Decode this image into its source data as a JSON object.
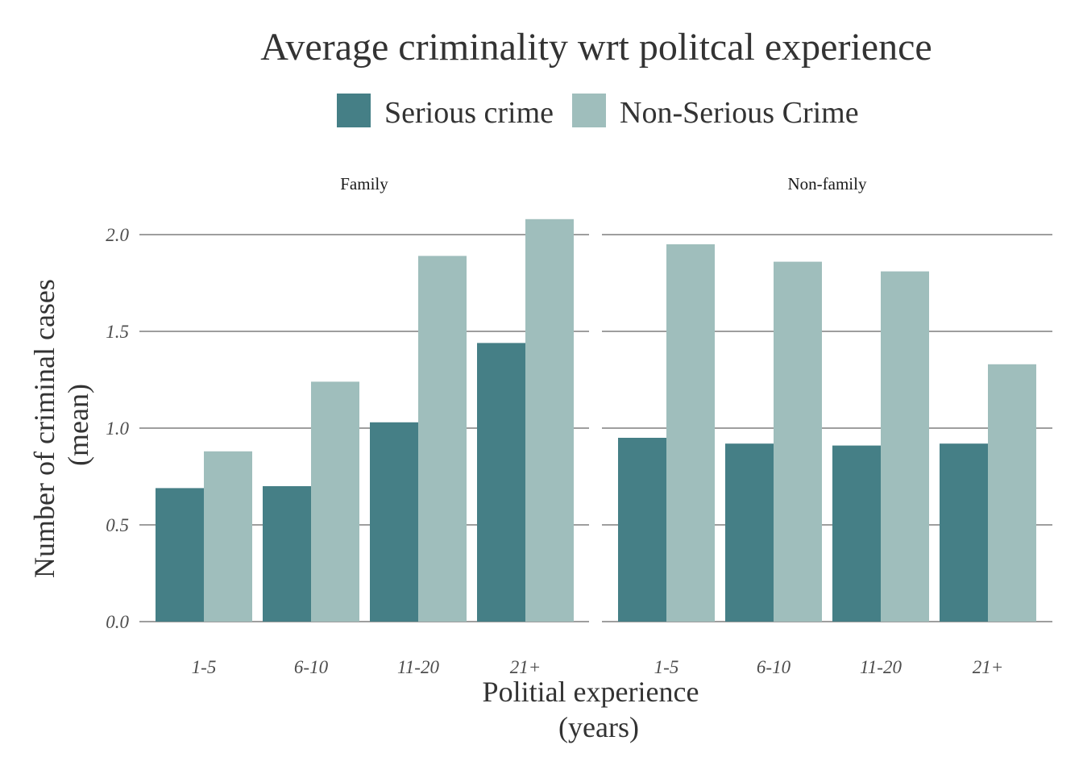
{
  "chart_data": {
    "type": "bar",
    "title": "Average criminality wrt politcal experience",
    "xlabel_lines": [
      "Politial experience",
      "(years)"
    ],
    "ylabel_lines": [
      "Number of criminal cases",
      "(mean)"
    ],
    "ylim": [
      0,
      2.1
    ],
    "yticks": [
      "0.0",
      "0.5",
      "1.0",
      "1.5",
      "2.0"
    ],
    "categories": [
      "1-5",
      "6-10",
      "11-20",
      "21+"
    ],
    "legend": [
      {
        "name": "Serious crime",
        "color": "#457F86"
      },
      {
        "name": "Non-Serious Crime",
        "color": "#9FBEBC"
      }
    ],
    "legend_position": "top",
    "grid": "horizontal",
    "panels": [
      {
        "label": "Family",
        "series": [
          {
            "name": "Serious crime",
            "values": [
              0.69,
              0.7,
              1.03,
              1.44
            ]
          },
          {
            "name": "Non-Serious Crime",
            "values": [
              0.88,
              1.24,
              1.89,
              2.08
            ]
          }
        ]
      },
      {
        "label": "Non-family",
        "series": [
          {
            "name": "Serious crime",
            "values": [
              0.95,
              0.92,
              0.91,
              0.92
            ]
          },
          {
            "name": "Non-Serious Crime",
            "values": [
              1.95,
              1.86,
              1.81,
              1.33
            ]
          }
        ]
      }
    ]
  }
}
